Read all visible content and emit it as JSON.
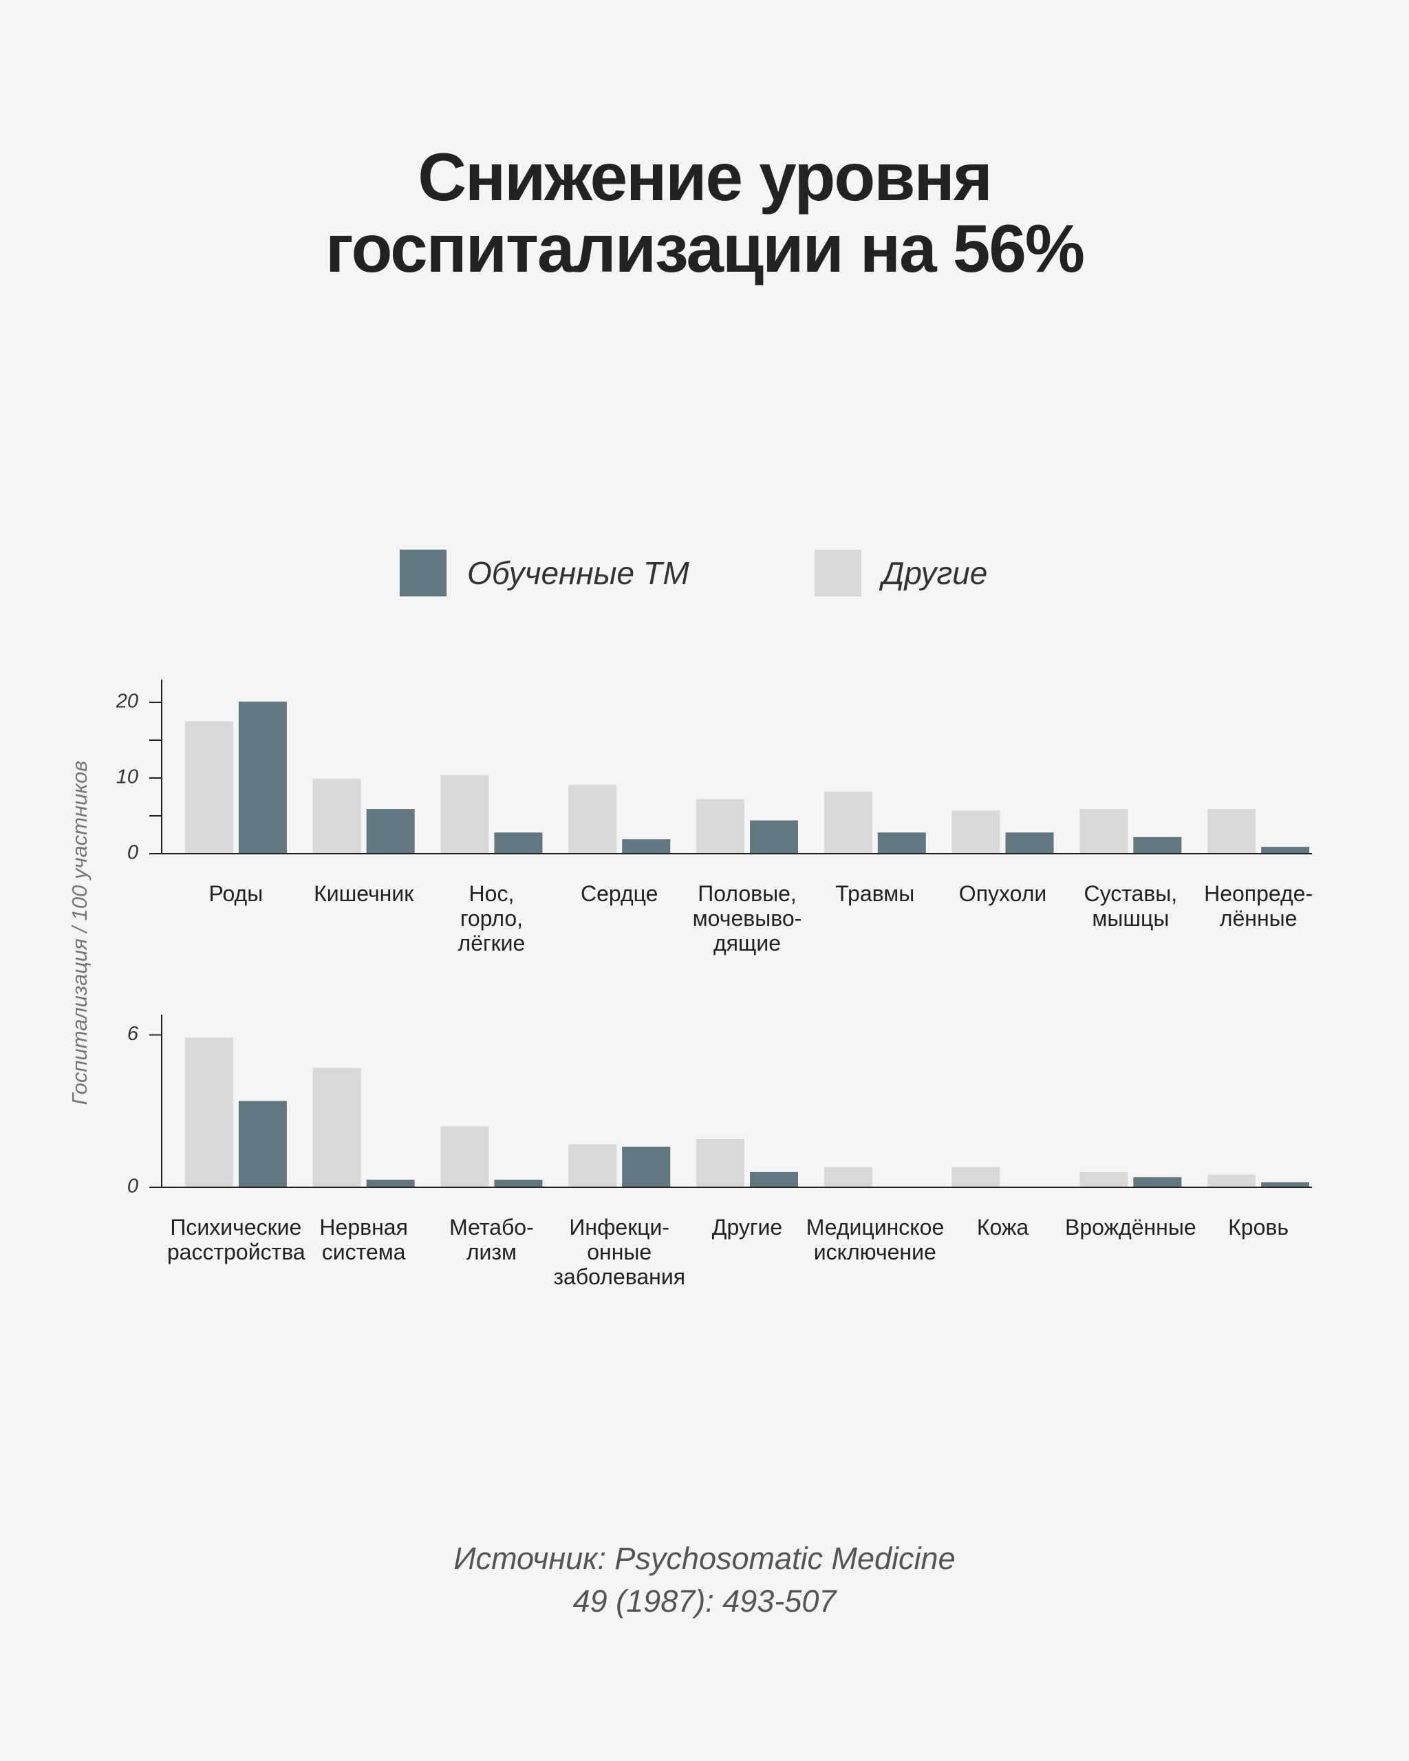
{
  "title": "Снижение уровня\nгоспитализации на 56%",
  "source": "Источник: Psychosomatic Medicine\n49 (1987): 493-507",
  "chart_data": [
    {
      "type": "bar",
      "y_label": "Госпитализация / 100 участников",
      "categories": [
        "Роды",
        "Кишечник",
        "Нос,\nгорло,\nлёгкие",
        "Сердце",
        "Половые,\nмочевыво-\nдящие",
        "Травмы",
        "Опухоли",
        "Суставы,\nмышцы",
        "Неопреде-\nлённые"
      ],
      "series": [
        {
          "name": "Обученные ТМ",
          "color": "#62777f",
          "values": [
            20.1,
            5.9,
            2.8,
            1.9,
            4.4,
            2.8,
            2.8,
            2.2,
            0.9
          ]
        },
        {
          "name": "Другие",
          "color": "#d9d9d9",
          "values": [
            17.5,
            9.9,
            10.4,
            9.1,
            7.2,
            8.2,
            5.7,
            5.9,
            5.9
          ]
        }
      ],
      "ylim": [
        0,
        23
      ],
      "yticks": [
        0,
        10,
        20
      ],
      "minor_yticks": [
        5,
        15
      ]
    },
    {
      "type": "bar",
      "categories": [
        "Психические\nрасстройства",
        "Нервная\nсистема",
        "Метабо-\nлизм",
        "Инфекци-\nонные\nзаболевания",
        "Другие",
        "Медицинское\nисключение",
        "Кожа",
        "Врождённые",
        "Кровь"
      ],
      "series": [
        {
          "name": "Обученные ТМ",
          "color": "#62777f",
          "values": [
            3.4,
            0.3,
            0.3,
            1.6,
            0.6,
            0,
            0,
            0.4,
            0.2
          ]
        },
        {
          "name": "Другие",
          "color": "#d9d9d9",
          "values": [
            5.9,
            4.7,
            2.4,
            1.7,
            1.9,
            0.8,
            0.8,
            0.6,
            0.5
          ]
        }
      ],
      "ylim": [
        0,
        6.8
      ],
      "yticks": [
        0,
        6
      ]
    }
  ]
}
